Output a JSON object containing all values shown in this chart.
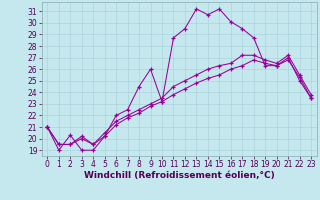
{
  "title": "",
  "xlabel": "Windchill (Refroidissement éolien,°C)",
  "bg_color": "#c5e8ee",
  "line_color": "#990099",
  "grid_color": "#aad4da",
  "ylim": [
    18.5,
    31.8
  ],
  "xlim": [
    -0.5,
    23.5
  ],
  "yticks": [
    19,
    20,
    21,
    22,
    23,
    24,
    25,
    26,
    27,
    28,
    29,
    30,
    31
  ],
  "xticks": [
    0,
    1,
    2,
    3,
    4,
    5,
    6,
    7,
    8,
    9,
    10,
    11,
    12,
    13,
    14,
    15,
    16,
    17,
    18,
    19,
    20,
    21,
    22,
    23
  ],
  "series": [
    [
      21.0,
      19.0,
      20.3,
      19.0,
      19.0,
      20.2,
      22.0,
      22.5,
      24.5,
      26.0,
      23.2,
      28.7,
      29.5,
      31.2,
      30.7,
      31.2,
      30.1,
      29.5,
      28.7,
      26.3,
      26.3,
      27.0,
      25.0,
      23.5
    ],
    [
      21.0,
      19.5,
      19.5,
      20.2,
      19.5,
      20.5,
      21.5,
      22.0,
      22.5,
      23.0,
      23.5,
      24.5,
      25.0,
      25.5,
      26.0,
      26.3,
      26.5,
      27.2,
      27.2,
      26.8,
      26.5,
      27.2,
      25.5,
      23.8
    ],
    [
      21.0,
      19.5,
      19.5,
      20.0,
      19.5,
      20.2,
      21.2,
      21.8,
      22.2,
      22.8,
      23.2,
      23.8,
      24.3,
      24.8,
      25.2,
      25.5,
      26.0,
      26.3,
      26.8,
      26.5,
      26.3,
      26.8,
      25.3,
      23.5
    ]
  ],
  "tick_fontsize": 5.5,
  "xlabel_fontsize": 6.5,
  "tick_color": "#550055",
  "xlabel_color": "#550055"
}
